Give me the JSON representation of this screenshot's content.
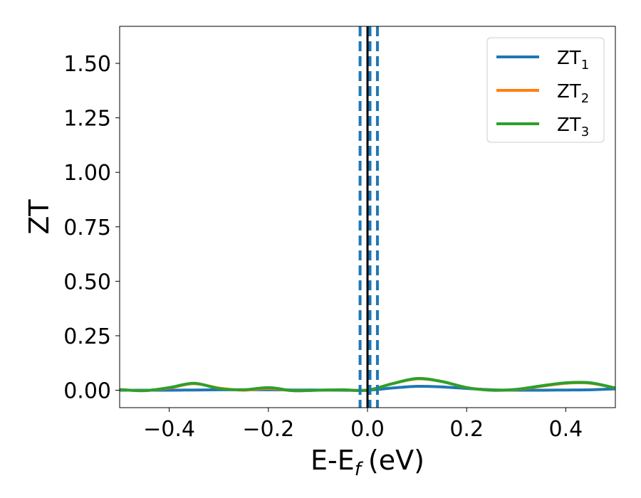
{
  "chart_data": {
    "type": "line",
    "xlabel": "E-E",
    "xlabel_sub": "f",
    "xlabel_unit": "(eV)",
    "ylabel": "ZT",
    "xlim": [
      -0.5,
      0.5
    ],
    "ylim": [
      -0.08,
      1.67
    ],
    "xticks": [
      -0.4,
      -0.2,
      0.0,
      0.2,
      0.4
    ],
    "xtick_labels": [
      "−0.4",
      "−0.2",
      "0.0",
      "0.2",
      "0.4"
    ],
    "yticks": [
      0.0,
      0.25,
      0.5,
      0.75,
      1.0,
      1.25,
      1.5
    ],
    "ytick_labels": [
      "0.00",
      "0.25",
      "0.50",
      "0.75",
      "1.00",
      "1.25",
      "1.50"
    ],
    "grid": false,
    "legend_position": "top-right",
    "vertical_lines": [
      {
        "x": -0.015,
        "style": "dashed",
        "color": "#1f77b4"
      },
      {
        "x": 0.0,
        "style": "solid",
        "color": "#000000"
      },
      {
        "x": 0.005,
        "style": "dashed",
        "color": "#1f77b4"
      },
      {
        "x": 0.02,
        "style": "dashed",
        "color": "#1f77b4"
      }
    ],
    "series": [
      {
        "name": "ZT",
        "name_sub": "1",
        "color": "#1f77b4",
        "x": [
          -0.5,
          -0.45,
          -0.4,
          -0.35,
          -0.3,
          -0.25,
          -0.2,
          -0.15,
          -0.1,
          -0.05,
          0.0,
          0.05,
          0.1,
          0.15,
          0.2,
          0.25,
          0.3,
          0.35,
          0.4,
          0.45,
          0.5
        ],
        "y": [
          0.0,
          0.0,
          0.0,
          0.001,
          0.002,
          0.002,
          0.002,
          0.001,
          0.001,
          0.0,
          0.0,
          0.01,
          0.018,
          0.015,
          0.008,
          0.002,
          0.0,
          0.0,
          0.001,
          0.002,
          0.006
        ]
      },
      {
        "name": "ZT",
        "name_sub": "2",
        "color": "#ff7f0e",
        "x": [
          -0.5,
          -0.45,
          -0.4,
          -0.35,
          -0.3,
          -0.25,
          -0.2,
          -0.15,
          -0.1,
          -0.05,
          0.0,
          0.05,
          0.1,
          0.15,
          0.2,
          0.25,
          0.3,
          0.35,
          0.4,
          0.45,
          0.5
        ],
        "y": [
          0.003,
          -0.002,
          0.01,
          0.03,
          0.01,
          0.0,
          0.008,
          -0.002,
          0.0,
          0.002,
          0.0,
          0.03,
          0.052,
          0.04,
          0.012,
          0.0,
          0.003,
          0.018,
          0.032,
          0.032,
          0.01
        ]
      },
      {
        "name": "ZT",
        "name_sub": "3",
        "color": "#2ca02c",
        "x": [
          -0.5,
          -0.45,
          -0.4,
          -0.35,
          -0.3,
          -0.25,
          -0.2,
          -0.15,
          -0.1,
          -0.05,
          0.0,
          0.05,
          0.1,
          0.15,
          0.2,
          0.25,
          0.3,
          0.35,
          0.4,
          0.45,
          0.5
        ],
        "y": [
          0.003,
          -0.002,
          0.012,
          0.032,
          0.008,
          0.002,
          0.012,
          -0.002,
          0.0,
          0.002,
          0.0,
          0.03,
          0.054,
          0.04,
          0.012,
          0.0,
          0.004,
          0.02,
          0.034,
          0.034,
          0.01
        ]
      }
    ]
  }
}
